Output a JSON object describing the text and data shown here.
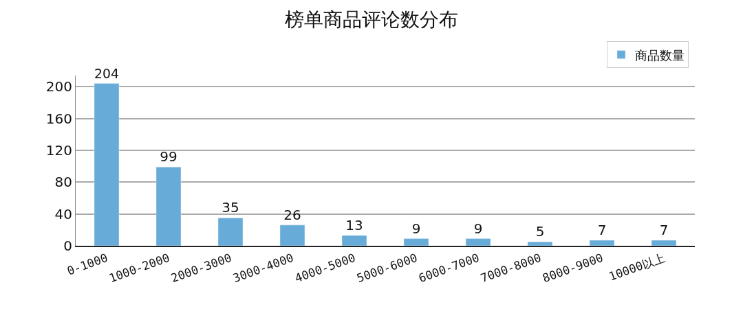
{
  "chart_data": {
    "type": "bar",
    "title": "榜单商品评论数分布",
    "categories": [
      "0-1000",
      "1000-2000",
      "2000-3000",
      "3000-4000",
      "4000-5000",
      "5000-6000",
      "6000-7000",
      "7000-8000",
      "8000-9000",
      "10000以上"
    ],
    "series": [
      {
        "name": "商品数量",
        "color": "#67acd9",
        "values": [
          204,
          99,
          35,
          26,
          13,
          9,
          9,
          5,
          7,
          7
        ]
      }
    ],
    "ylim": [
      0,
      214
    ],
    "yticks": [
      0,
      40,
      80,
      120,
      160,
      200
    ],
    "grid": "y",
    "legend": "top right",
    "data_labels": true
  }
}
